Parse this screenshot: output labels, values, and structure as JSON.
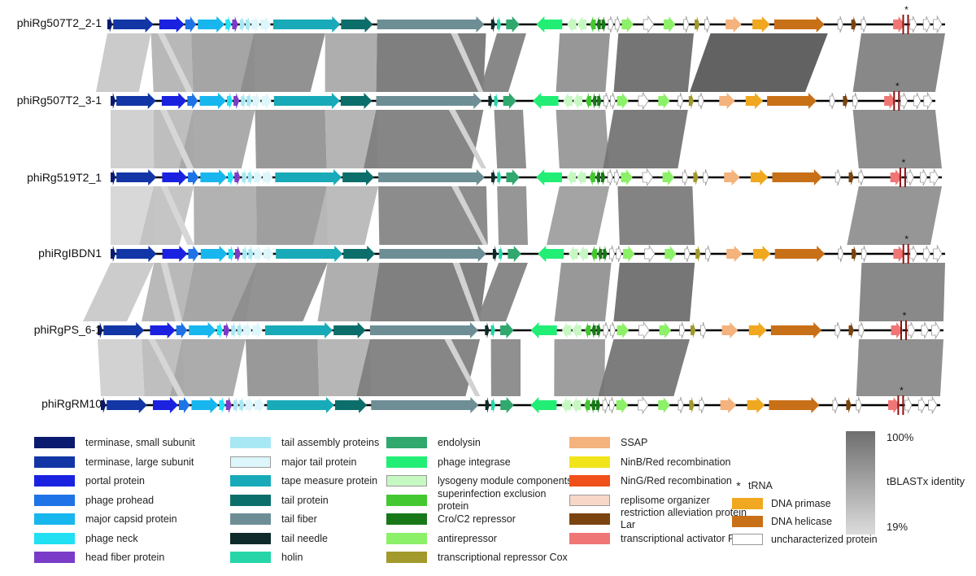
{
  "genomes": [
    "phiRg507T2_2-1",
    "phiRg507T2_3-1",
    "phiRg519T2_1",
    "phiRgIBDN1",
    "phiRgPS_6-1",
    "phiRgRM10"
  ],
  "legend": {
    "col1": [
      {
        "label": "terminase, small subunit",
        "color": "#0a1a6e"
      },
      {
        "label": "terminase, large subunit",
        "color": "#1236a6"
      },
      {
        "label": "portal protein",
        "color": "#1a22e0"
      },
      {
        "label": "phage prohead",
        "color": "#1e74e6"
      },
      {
        "label": "major capsid protein",
        "color": "#18b6ee"
      },
      {
        "label": "phage neck",
        "color": "#22e0f4"
      },
      {
        "label": "head fiber protein",
        "color": "#7a3cc8"
      }
    ],
    "col2": [
      {
        "label": "tail assembly proteins",
        "color": "#a8e8f4"
      },
      {
        "label": "major tail protein",
        "color": "#dcf6fb"
      },
      {
        "label": "tape measure protein",
        "color": "#18aab8"
      },
      {
        "label": "tail protein",
        "color": "#0c6e6a"
      },
      {
        "label": "tail fiber",
        "color": "#6e8e96"
      },
      {
        "label": "tail needle",
        "color": "#0e2a2a"
      },
      {
        "label": "holin",
        "color": "#26d6a8"
      }
    ],
    "col3": [
      {
        "label": "endolysin",
        "color": "#30a86e"
      },
      {
        "label": "phage integrase",
        "color": "#22ee76"
      },
      {
        "label": "lysogeny module components",
        "color": "#c6f8c2"
      },
      {
        "label": "superinfection exclusion protein",
        "color": "#44c832"
      },
      {
        "label": "Cro/C2 repressor",
        "color": "#187818"
      },
      {
        "label": "antirepressor",
        "color": "#8cf068"
      },
      {
        "label": "transcriptional repressor Cox",
        "color": "#a29a2c"
      }
    ],
    "col4": [
      {
        "label": "SSAP",
        "color": "#f4b27c"
      },
      {
        "label": "NinB/Red recombination",
        "color": "#f2e41a"
      },
      {
        "label": "NinG/Red recombination",
        "color": "#f0501a"
      },
      {
        "label": "replisome organizer",
        "color": "#f8d6c8"
      },
      {
        "label": "restriction alleviation protein Lar",
        "color": "#7a4410"
      },
      {
        "label": "transcriptional activator RinA",
        "color": "#f07676"
      }
    ],
    "col5": [
      {
        "label": "tRNA",
        "symbol": "*"
      },
      {
        "label": "DNA primase",
        "color": "#f0a820"
      },
      {
        "label": "DNA helicase",
        "color": "#c87018"
      },
      {
        "label": "uncharacterized protein",
        "color": "#ffffff"
      }
    ]
  },
  "identity_scale": {
    "max": "100%",
    "label": "tBLASTx identity",
    "min": "19%",
    "max_color": "#6e6e6e",
    "min_color": "#dcdcdc"
  }
}
